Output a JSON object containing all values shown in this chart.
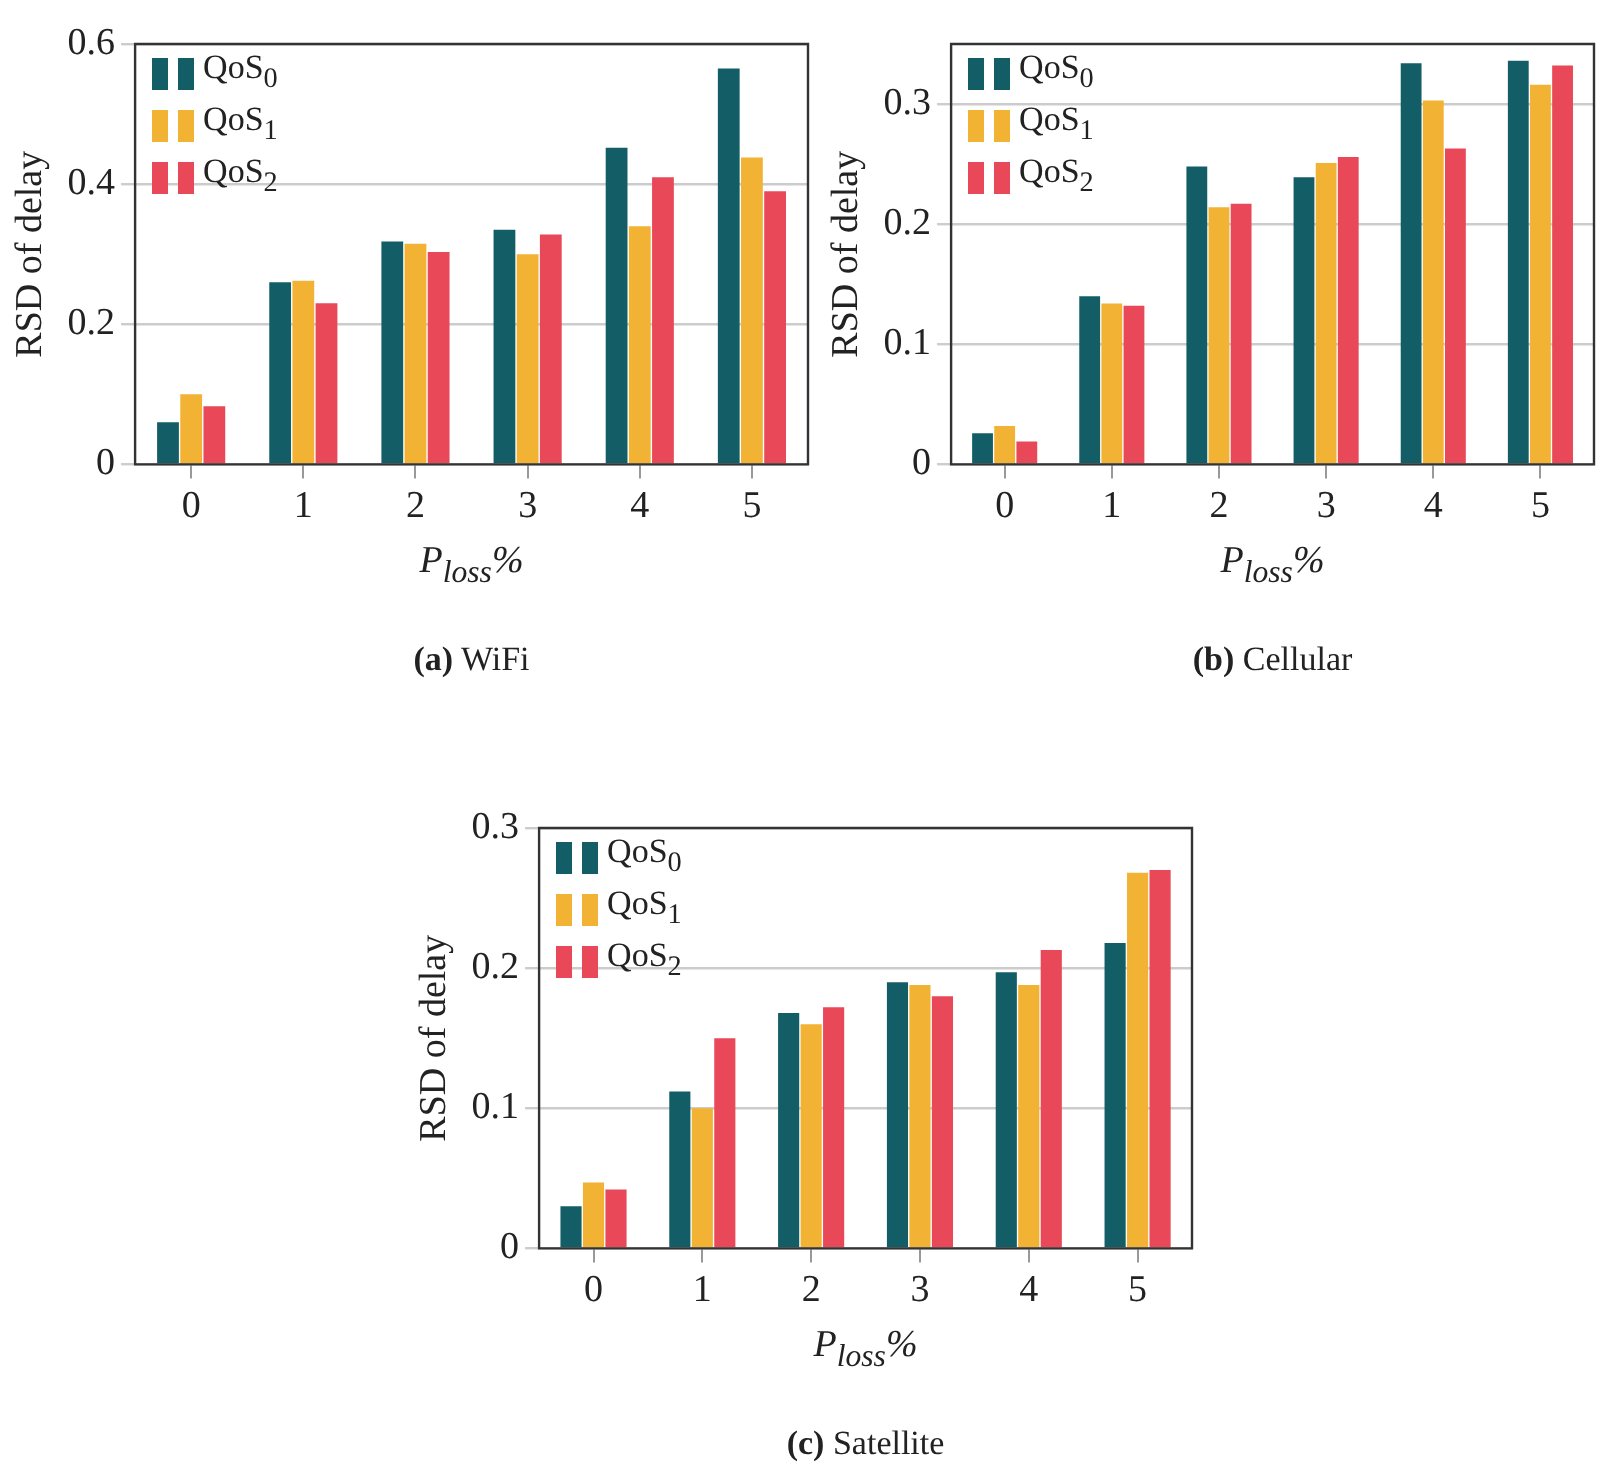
{
  "chart_data": [
    {
      "type": "bar",
      "title": "(a) WiFi",
      "xlabel": "P$_{loss}$%",
      "ylabel": "RSD of delay",
      "categories": [
        "0",
        "1",
        "2",
        "3",
        "4",
        "5"
      ],
      "series": [
        {
          "name": "QoS$_{0}$",
          "color": "#135e66",
          "values": [
            0.06,
            0.26,
            0.318,
            0.335,
            0.452,
            0.565
          ]
        },
        {
          "name": "QoS$_{1}$",
          "color": "#f2b233",
          "values": [
            0.1,
            0.262,
            0.315,
            0.3,
            0.34,
            0.438
          ]
        },
        {
          "name": "QoS$_{2}$",
          "color": "#e84858",
          "values": [
            0.083,
            0.23,
            0.303,
            0.328,
            0.41,
            0.39
          ]
        }
      ],
      "ylim": [
        0,
        0.6
      ],
      "yticks": [
        0,
        0.2,
        0.4,
        0.6
      ],
      "grid": "y",
      "legend": "top left"
    },
    {
      "type": "bar",
      "title": "(b) Cellular",
      "xlabel": "P$_{loss}$%",
      "ylabel": "RSD of delay",
      "categories": [
        "0",
        "1",
        "2",
        "3",
        "4",
        "5"
      ],
      "series": [
        {
          "name": "QoS$_{0}$",
          "color": "#135e66",
          "values": [
            0.026,
            0.14,
            0.248,
            0.239,
            0.334,
            0.336
          ]
        },
        {
          "name": "QoS$_{1}$",
          "color": "#f2b233",
          "values": [
            0.032,
            0.134,
            0.214,
            0.251,
            0.303,
            0.316
          ]
        },
        {
          "name": "QoS$_{2}$",
          "color": "#e84858",
          "values": [
            0.019,
            0.132,
            0.217,
            0.256,
            0.263,
            0.332
          ]
        }
      ],
      "ylim": [
        0,
        0.35
      ],
      "yticks": [
        0,
        0.1,
        0.2,
        0.3
      ],
      "grid": "y",
      "legend": "top left"
    },
    {
      "type": "bar",
      "title": "(c) Satellite",
      "xlabel": "P$_{loss}$%",
      "ylabel": "RSD of delay",
      "categories": [
        "0",
        "1",
        "2",
        "3",
        "4",
        "5"
      ],
      "series": [
        {
          "name": "QoS$_{0}$",
          "color": "#135e66",
          "values": [
            0.03,
            0.112,
            0.168,
            0.19,
            0.197,
            0.218
          ]
        },
        {
          "name": "QoS$_{1}$",
          "color": "#f2b233",
          "values": [
            0.047,
            0.1,
            0.16,
            0.188,
            0.188,
            0.268
          ]
        },
        {
          "name": "QoS$_{2}$",
          "color": "#e84858",
          "values": [
            0.042,
            0.15,
            0.172,
            0.18,
            0.213,
            0.27
          ]
        }
      ],
      "ylim": [
        0,
        0.3
      ],
      "yticks": [
        0,
        0.1,
        0.2,
        0.3
      ],
      "grid": "y",
      "legend": "top left"
    }
  ]
}
